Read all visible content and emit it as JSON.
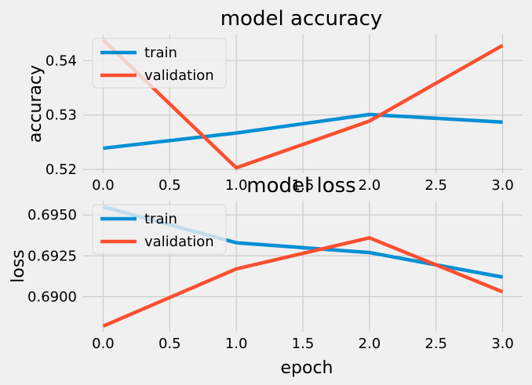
{
  "chart_data": [
    {
      "type": "line",
      "title": "model accuracy",
      "xlabel": "",
      "ylabel": "accuracy",
      "x": [
        0,
        1,
        2,
        3
      ],
      "xticks": [
        0.0,
        0.5,
        1.0,
        1.5,
        2.0,
        2.5,
        3.0
      ],
      "xtick_labels": [
        "0.0",
        "0.5",
        "1.0",
        "1.5",
        "2.0",
        "2.5",
        "3.0"
      ],
      "yticks": [
        0.52,
        0.53,
        0.54
      ],
      "ytick_labels": [
        "0.52",
        "0.53",
        "0.54"
      ],
      "ylim": [
        0.5193,
        0.5448
      ],
      "xlim": [
        -0.15,
        3.15
      ],
      "grid": true,
      "legend_position": "upper-left",
      "series": [
        {
          "name": "train",
          "color": "#008fd5",
          "values": [
            0.5239,
            0.5267,
            0.5301,
            0.5287
          ]
        },
        {
          "name": "validation",
          "color": "#fc4f30",
          "values": [
            0.5438,
            0.5203,
            0.5289,
            0.5428
          ]
        }
      ]
    },
    {
      "type": "line",
      "title": "model loss",
      "xlabel": "epoch",
      "ylabel": "loss",
      "x": [
        0,
        1,
        2,
        3
      ],
      "xticks": [
        0.0,
        0.5,
        1.0,
        1.5,
        2.0,
        2.5,
        3.0
      ],
      "xtick_labels": [
        "0.0",
        "0.5",
        "1.0",
        "1.5",
        "2.0",
        "2.5",
        "3.0"
      ],
      "yticks": [
        0.69,
        0.6925,
        0.695
      ],
      "ytick_labels": [
        "0.6900",
        "0.6925",
        "0.6950"
      ],
      "ylim": [
        0.68786,
        0.69587
      ],
      "xlim": [
        -0.15,
        3.15
      ],
      "grid": true,
      "legend_position": "upper-left",
      "series": [
        {
          "name": "train",
          "color": "#008fd5",
          "values": [
            0.6955,
            0.6933,
            0.6927,
            0.6912
          ]
        },
        {
          "name": "validation",
          "color": "#fc4f30",
          "values": [
            0.6882,
            0.6917,
            0.6936,
            0.6903
          ]
        }
      ]
    }
  ]
}
